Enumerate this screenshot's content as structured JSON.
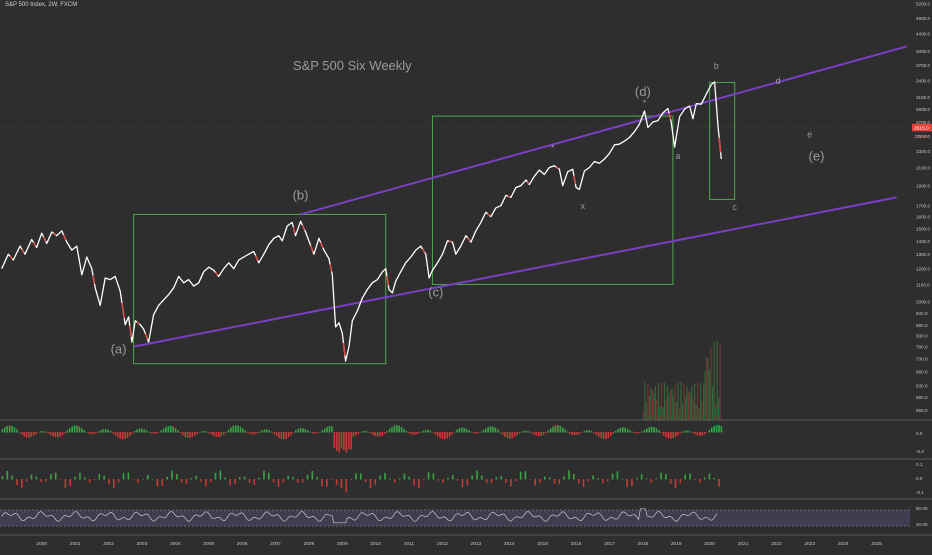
{
  "header": {
    "symbol_text": "S&P 500 Index, 2W, FXCM"
  },
  "chart_data": {
    "type": "line",
    "title": "S&P 500 Six Weekly",
    "price_axis": {
      "scale": "log",
      "ticks": [
        5200,
        4800,
        4400,
        4000,
        3700,
        3400,
        3100,
        2900,
        2700,
        2500,
        2300,
        2100,
        1900,
        1700,
        1600,
        1500,
        1400,
        1300,
        1200,
        1100,
        1000,
        940,
        880,
        830,
        780,
        730,
        680,
        630,
        590,
        550
      ],
      "tick_labels": [
        "5200.0",
        "4800.0",
        "4400.0",
        "4000.0",
        "3700.0",
        "3400.0",
        "3100.0",
        "2900.0",
        "2700.0",
        "2500.0",
        "2300.0",
        "2100.0",
        "1900.0",
        "1700.0",
        "1600.0",
        "1500.0",
        "1400.0",
        "1300.0",
        "1200.0",
        "1100.0",
        "1000.0",
        "940.0",
        "880.0",
        "830.0",
        "780.0",
        "730.0",
        "680.0",
        "630.0",
        "590.0",
        "550.0"
      ],
      "last_price_label": "2615.0",
      "secondary_label": "2 1d 15",
      "range": [
        520,
        5300
      ]
    },
    "time_axis": {
      "tick_labels": [
        "2000",
        "2001",
        "2002",
        "2003",
        "2004",
        "2005",
        "2006",
        "2007",
        "2008",
        "2009",
        "2010",
        "2011",
        "2012",
        "2013",
        "2014",
        "2015",
        "2016",
        "2017",
        "2018",
        "2019",
        "2020",
        "2021",
        "2022",
        "2023",
        "2024",
        "2025"
      ],
      "range": [
        1998.75,
        2026.0
      ]
    },
    "series": [
      {
        "values": [
          [
            1998.8,
            1200
          ],
          [
            1999.0,
            1300
          ],
          [
            1999.15,
            1260
          ],
          [
            1999.35,
            1360
          ],
          [
            1999.5,
            1300
          ],
          [
            1999.7,
            1410
          ],
          [
            1999.85,
            1350
          ],
          [
            2000.0,
            1460
          ],
          [
            2000.15,
            1380
          ],
          [
            2000.3,
            1470
          ],
          [
            2000.45,
            1440
          ],
          [
            2000.6,
            1480
          ],
          [
            2000.75,
            1390
          ],
          [
            2000.9,
            1330
          ],
          [
            2001.05,
            1360
          ],
          [
            2001.2,
            1160
          ],
          [
            2001.35,
            1280
          ],
          [
            2001.5,
            1200
          ],
          [
            2001.6,
            1080
          ],
          [
            2001.75,
            980
          ],
          [
            2001.9,
            1140
          ],
          [
            2002.05,
            1130
          ],
          [
            2002.2,
            1150
          ],
          [
            2002.35,
            1060
          ],
          [
            2002.5,
            880
          ],
          [
            2002.6,
            920
          ],
          [
            2002.7,
            800
          ],
          [
            2002.8,
            900
          ],
          [
            2002.95,
            880
          ],
          [
            2003.05,
            860
          ],
          [
            2003.2,
            800
          ],
          [
            2003.35,
            930
          ],
          [
            2003.5,
            980
          ],
          [
            2003.65,
            1010
          ],
          [
            2003.8,
            1040
          ],
          [
            2003.95,
            1080
          ],
          [
            2004.1,
            1150
          ],
          [
            2004.25,
            1110
          ],
          [
            2004.4,
            1130
          ],
          [
            2004.55,
            1090
          ],
          [
            2004.7,
            1110
          ],
          [
            2004.85,
            1180
          ],
          [
            2005.0,
            1210
          ],
          [
            2005.15,
            1190
          ],
          [
            2005.3,
            1150
          ],
          [
            2005.45,
            1200
          ],
          [
            2005.6,
            1240
          ],
          [
            2005.75,
            1200
          ],
          [
            2005.9,
            1260
          ],
          [
            2006.05,
            1280
          ],
          [
            2006.2,
            1300
          ],
          [
            2006.35,
            1320
          ],
          [
            2006.5,
            1240
          ],
          [
            2006.65,
            1300
          ],
          [
            2006.8,
            1370
          ],
          [
            2006.95,
            1420
          ],
          [
            2007.1,
            1440
          ],
          [
            2007.2,
            1400
          ],
          [
            2007.35,
            1520
          ],
          [
            2007.5,
            1550
          ],
          [
            2007.6,
            1440
          ],
          [
            2007.75,
            1560
          ],
          [
            2007.9,
            1470
          ],
          [
            2008.0,
            1400
          ],
          [
            2008.15,
            1300
          ],
          [
            2008.3,
            1420
          ],
          [
            2008.45,
            1330
          ],
          [
            2008.6,
            1270
          ],
          [
            2008.7,
            1160
          ],
          [
            2008.8,
            870
          ],
          [
            2008.9,
            890
          ],
          [
            2009.0,
            840
          ],
          [
            2009.1,
            720
          ],
          [
            2009.2,
            780
          ],
          [
            2009.3,
            900
          ],
          [
            2009.45,
            950
          ],
          [
            2009.6,
            1020
          ],
          [
            2009.75,
            1070
          ],
          [
            2009.9,
            1110
          ],
          [
            2010.05,
            1130
          ],
          [
            2010.2,
            1180
          ],
          [
            2010.3,
            1200
          ],
          [
            2010.4,
            1070
          ],
          [
            2010.5,
            1050
          ],
          [
            2010.6,
            1120
          ],
          [
            2010.75,
            1180
          ],
          [
            2010.9,
            1240
          ],
          [
            2011.05,
            1280
          ],
          [
            2011.2,
            1330
          ],
          [
            2011.35,
            1360
          ],
          [
            2011.5,
            1300
          ],
          [
            2011.6,
            1140
          ],
          [
            2011.7,
            1190
          ],
          [
            2011.85,
            1240
          ],
          [
            2012.0,
            1300
          ],
          [
            2012.15,
            1400
          ],
          [
            2012.3,
            1390
          ],
          [
            2012.4,
            1300
          ],
          [
            2012.55,
            1360
          ],
          [
            2012.7,
            1440
          ],
          [
            2012.85,
            1390
          ],
          [
            2013.0,
            1480
          ],
          [
            2013.15,
            1550
          ],
          [
            2013.3,
            1640
          ],
          [
            2013.45,
            1600
          ],
          [
            2013.6,
            1680
          ],
          [
            2013.75,
            1700
          ],
          [
            2013.9,
            1800
          ],
          [
            2014.05,
            1780
          ],
          [
            2014.2,
            1880
          ],
          [
            2014.35,
            1900
          ],
          [
            2014.5,
            1960
          ],
          [
            2014.6,
            1910
          ],
          [
            2014.75,
            2000
          ],
          [
            2014.9,
            2070
          ],
          [
            2015.05,
            2020
          ],
          [
            2015.2,
            2100
          ],
          [
            2015.35,
            2120
          ],
          [
            2015.5,
            2080
          ],
          [
            2015.6,
            1900
          ],
          [
            2015.75,
            2050
          ],
          [
            2015.9,
            2080
          ],
          [
            2016.0,
            1880
          ],
          [
            2016.1,
            1860
          ],
          [
            2016.25,
            2060
          ],
          [
            2016.4,
            2100
          ],
          [
            2016.55,
            2170
          ],
          [
            2016.7,
            2150
          ],
          [
            2016.85,
            2200
          ],
          [
            2017.0,
            2270
          ],
          [
            2017.15,
            2380
          ],
          [
            2017.3,
            2390
          ],
          [
            2017.45,
            2430
          ],
          [
            2017.6,
            2480
          ],
          [
            2017.75,
            2560
          ],
          [
            2017.9,
            2670
          ],
          [
            2018.05,
            2870
          ],
          [
            2018.15,
            2620
          ],
          [
            2018.3,
            2700
          ],
          [
            2018.45,
            2720
          ],
          [
            2018.6,
            2840
          ],
          [
            2018.75,
            2910
          ],
          [
            2018.85,
            2700
          ],
          [
            2018.95,
            2350
          ],
          [
            2019.1,
            2780
          ],
          [
            2019.25,
            2900
          ],
          [
            2019.4,
            2950
          ],
          [
            2019.5,
            2750
          ],
          [
            2019.6,
            2990
          ],
          [
            2019.75,
            2980
          ],
          [
            2019.9,
            3150
          ],
          [
            2020.05,
            3320
          ],
          [
            2020.15,
            3370
          ],
          [
            2020.25,
            2640
          ],
          [
            2020.35,
            2200
          ]
        ]
      }
    ],
    "channel": {
      "upper_line": [
        [
          2007.75,
          1620
        ],
        [
          2025.9,
          4100
        ]
      ],
      "lower_line": [
        [
          2002.75,
          780
        ],
        [
          2025.6,
          1780
        ]
      ]
    },
    "boxes": [
      {
        "x": [
          2002.75,
          2010.3
        ],
        "y": [
          710,
          1620
        ]
      },
      {
        "x": [
          2011.7,
          2018.9
        ],
        "y": [
          1100,
          2790
        ]
      },
      {
        "x": [
          2020.0,
          2020.75
        ],
        "y": [
          1760,
          3360
        ]
      }
    ],
    "annotations": [
      {
        "text": "S&P 500 Six Weekly",
        "x": 2009.3,
        "y": 3600
      },
      {
        "text": "(a)",
        "x": 2002.3,
        "y": 752
      },
      {
        "text": "(b)",
        "x": 2007.75,
        "y": 1760
      },
      {
        "text": "(c)",
        "x": 2011.8,
        "y": 1030
      },
      {
        "text": "(d)",
        "x": 2018.0,
        "y": 3120
      },
      {
        "text": "(e)",
        "x": 2023.2,
        "y": 2180
      },
      {
        "text": "a",
        "x": 2019.05,
        "y": 2200
      },
      {
        "text": "b",
        "x": 2020.2,
        "y": 3620
      },
      {
        "text": "c",
        "x": 2020.75,
        "y": 1660
      },
      {
        "text": "d",
        "x": 2022.05,
        "y": 3330
      },
      {
        "text": "e",
        "x": 2023.0,
        "y": 2480
      },
      {
        "text": "x",
        "x": 2016.2,
        "y": 1670
      },
      {
        "text": "*",
        "x": 2015.3,
        "y": 2300
      },
      {
        "text": "*",
        "x": 2018.05,
        "y": 2950
      }
    ],
    "indicator_panels": [
      {
        "name": "histogram",
        "tick_labels": [
          "0.0",
          "-0.2"
        ]
      },
      {
        "name": "oscillator",
        "tick_labels": [
          "0.1",
          "0.0",
          "-0.1"
        ]
      },
      {
        "name": "rsi",
        "tick_labels": [
          "80.00",
          "40.00"
        ],
        "levels": [
          70,
          30
        ]
      }
    ],
    "colors": {
      "background": "#2e2e2e",
      "price_line": "#ffffff",
      "down_segment": "#e8413c",
      "up_bar": "#3fae49",
      "channel": "#7a3fc4",
      "box": "#49a84c",
      "annotation": "#9a9a9a",
      "last_price_bg": "#e8413c",
      "rsi_line": "#c8c8c8",
      "rsi_fill": "#4a4560"
    }
  }
}
